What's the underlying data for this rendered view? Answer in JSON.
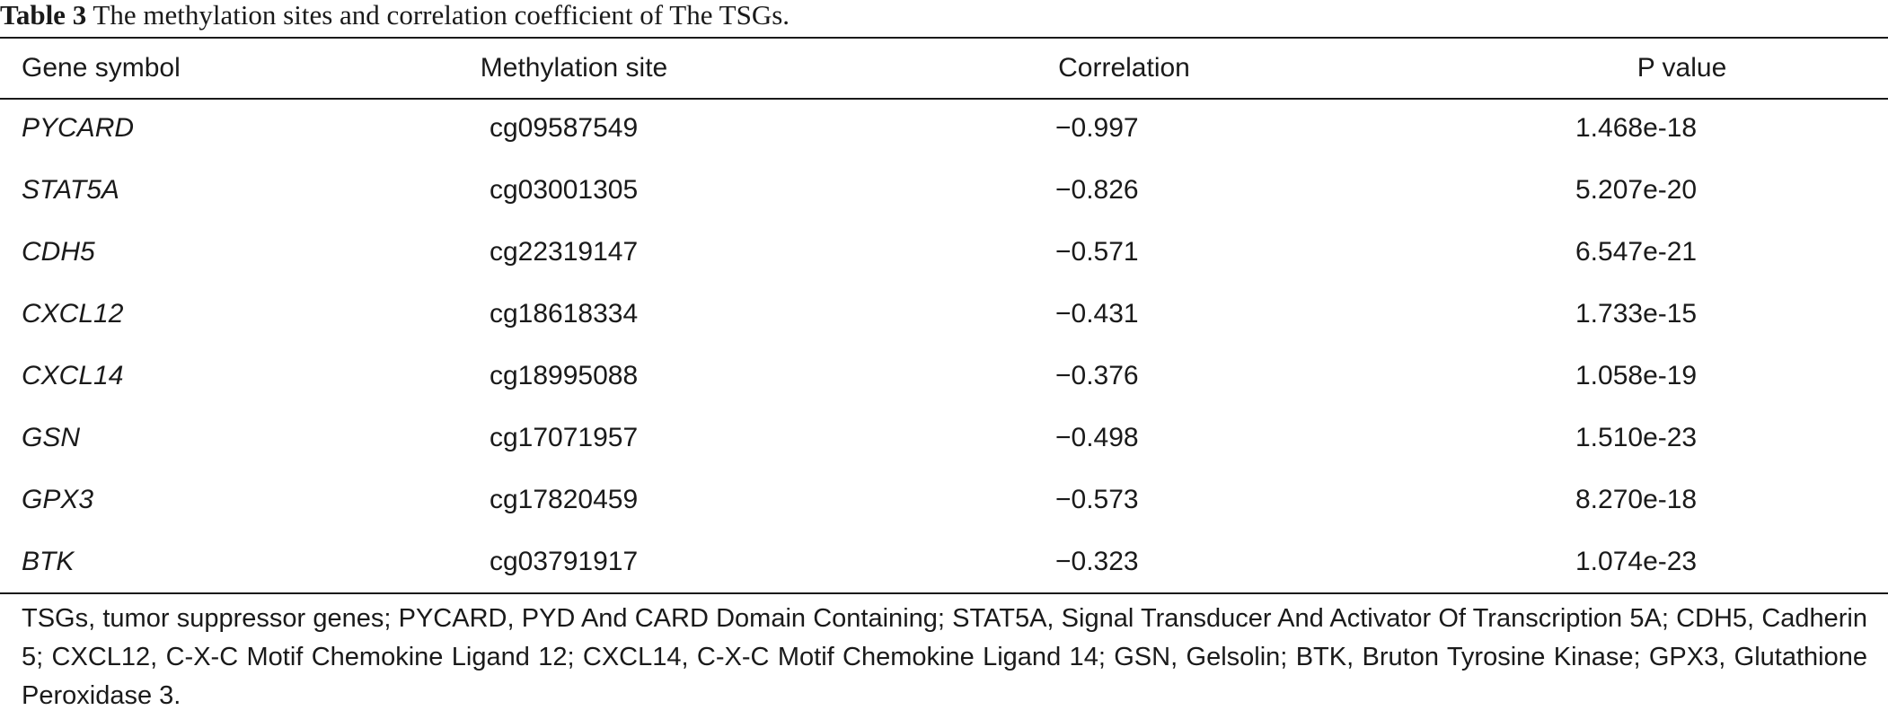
{
  "caption": {
    "label": "Table 3",
    "text": "The methylation sites and correlation coefficient of The TSGs."
  },
  "table": {
    "headers": {
      "gene": "Gene symbol",
      "site": "Methylation site",
      "correlation": "Correlation",
      "pvalue": "P value"
    },
    "rows": [
      {
        "gene": "PYCARD",
        "site": "cg09587549",
        "correlation": "−0.997",
        "pvalue": "1.468e-18"
      },
      {
        "gene": "STAT5A",
        "site": "cg03001305",
        "correlation": "−0.826",
        "pvalue": "5.207e-20"
      },
      {
        "gene": "CDH5",
        "site": "cg22319147",
        "correlation": "−0.571",
        "pvalue": "6.547e-21"
      },
      {
        "gene": "CXCL12",
        "site": "cg18618334",
        "correlation": "−0.431",
        "pvalue": "1.733e-15"
      },
      {
        "gene": "CXCL14",
        "site": "cg18995088",
        "correlation": "−0.376",
        "pvalue": "1.058e-19"
      },
      {
        "gene": "GSN",
        "site": "cg17071957",
        "correlation": "−0.498",
        "pvalue": "1.510e-23"
      },
      {
        "gene": "GPX3",
        "site": "cg17820459",
        "correlation": "−0.573",
        "pvalue": "8.270e-18"
      },
      {
        "gene": "BTK",
        "site": "cg03791917",
        "correlation": "−0.323",
        "pvalue": "1.074e-23"
      }
    ]
  },
  "footnote": "TSGs, tumor suppressor genes; PYCARD, PYD And CARD Domain Containing; STAT5A, Signal Transducer And Activator Of Transcription 5A; CDH5, Cadherin 5; CXCL12, C-X-C Motif Chemokine Ligand 12; CXCL14, C-X-C Motif Chemokine Ligand 14; GSN, Gelsolin; BTK, Bruton Tyrosine Kinase; GPX3, Glutathione Peroxidase 3."
}
